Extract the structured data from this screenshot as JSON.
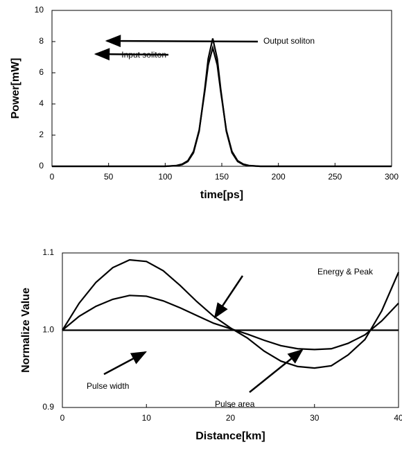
{
  "chart_data": [
    {
      "type": "line",
      "xlabel": "time[ps]",
      "ylabel": "Power[mW]",
      "xlim": [
        0,
        300
      ],
      "ylim": [
        0,
        10
      ],
      "xticks": [
        0,
        50,
        100,
        150,
        200,
        250,
        300
      ],
      "yticks": [
        0,
        2,
        4,
        6,
        8,
        10
      ],
      "x": [
        0,
        100,
        110,
        115,
        120,
        125,
        130,
        135,
        138,
        142,
        146,
        149,
        154,
        159,
        164,
        169,
        174,
        184,
        300
      ],
      "series": [
        {
          "name": "Input soliton",
          "color": "#000000",
          "values": [
            0,
            0,
            0.05,
            0.14,
            0.36,
            0.95,
            2.32,
            4.83,
            6.5,
            7.6,
            6.5,
            4.83,
            2.32,
            0.95,
            0.36,
            0.14,
            0.05,
            0,
            0
          ]
        },
        {
          "name": "Output soliton",
          "color": "#000000",
          "values": [
            0,
            0,
            0.04,
            0.11,
            0.31,
            0.87,
            2.25,
            4.98,
            6.9,
            8.2,
            6.9,
            4.98,
            2.25,
            0.87,
            0.31,
            0.11,
            0.04,
            0,
            0
          ]
        }
      ],
      "annotations": [
        "Input soliton",
        "Output soliton"
      ]
    },
    {
      "type": "line",
      "xlabel": "Distance[km]",
      "ylabel": "Normalize Value",
      "xlim": [
        0,
        40
      ],
      "ylim": [
        0.9,
        1.1
      ],
      "xticks": [
        0,
        10,
        20,
        30,
        40
      ],
      "yticks": [
        0.9,
        {
          "value": 1.0,
          "label": "1.0"
        },
        1.1
      ],
      "x": [
        0,
        2,
        4,
        6,
        8,
        10,
        12,
        14,
        16,
        18,
        20,
        22,
        24,
        26,
        28,
        30,
        32,
        34,
        36,
        38,
        40
      ],
      "series": [
        {
          "name": "Energy & Peak",
          "color": "#000000",
          "values": [
            1.0,
            1.035,
            1.062,
            1.081,
            1.091,
            1.089,
            1.077,
            1.058,
            1.037,
            1.018,
            1.003,
            0.99,
            0.973,
            0.96,
            0.953,
            0.951,
            0.954,
            0.968,
            0.988,
            1.025,
            1.075
          ]
        },
        {
          "name": "Pulse area",
          "color": "#000000",
          "values": [
            1.0,
            1.018,
            1.031,
            1.04,
            1.045,
            1.044,
            1.038,
            1.029,
            1.019,
            1.009,
            1.002,
            0.995,
            0.987,
            0.98,
            0.976,
            0.975,
            0.976,
            0.983,
            0.994,
            1.012,
            1.035
          ]
        },
        {
          "name": "Pulse width",
          "color": "#000000",
          "values": [
            1.0,
            1.0,
            1.0,
            1.0,
            1.0,
            1.0,
            1.0,
            1.0,
            1.0,
            1.0,
            1.0,
            1.0,
            1.0,
            1.0,
            1.0,
            1.0,
            1.0,
            1.0,
            1.0,
            1.0,
            1.0
          ]
        }
      ],
      "annotations": [
        "Energy & Peak",
        "Pulse width",
        "Pulse area"
      ]
    }
  ]
}
